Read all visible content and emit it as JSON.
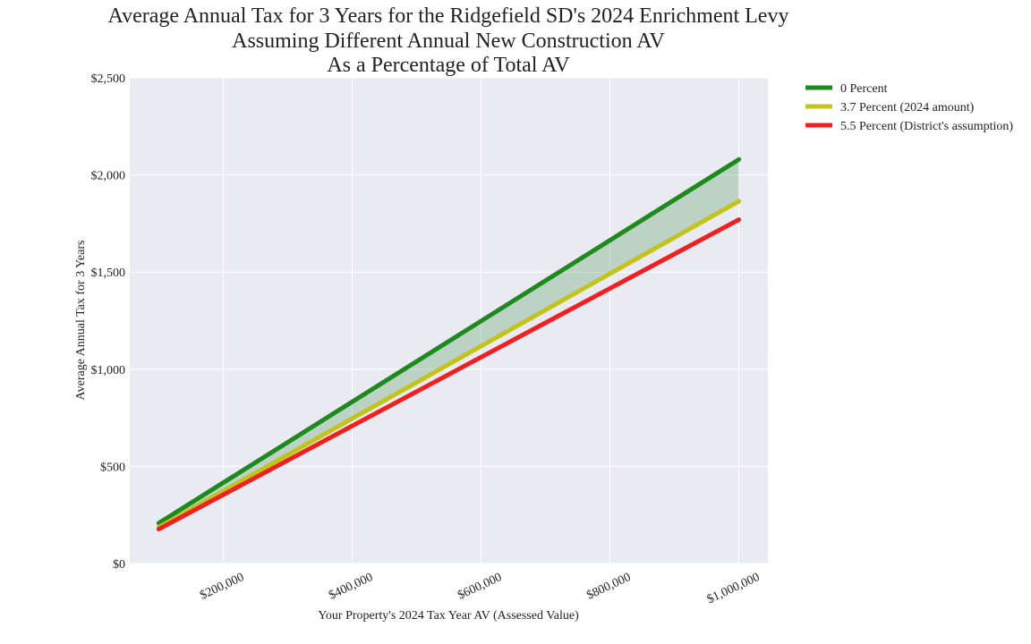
{
  "chart_data": {
    "type": "line",
    "title": [
      "Average Annual Tax for 3 Years for the Ridgefield SD's 2024 Enrichment Levy",
      "Assuming Different Annual New Construction AV",
      "As a Percentage of Total AV"
    ],
    "x_label": "Your Property's 2024 Tax Year AV (Assessed Value)",
    "y_label": "Average Annual Tax for 3 Years",
    "x": [
      100000,
      200000,
      300000,
      400000,
      500000,
      600000,
      700000,
      800000,
      900000,
      1000000
    ],
    "series": [
      {
        "name": "0 Percent",
        "color": "#1e8a1e",
        "values": [
          208,
          416,
          624,
          832,
          1040,
          1248,
          1456,
          1664,
          1872,
          2080
        ]
      },
      {
        "name": "3.7 Percent (2024 amount)",
        "color": "#c3c31c",
        "values": [
          186,
          373,
          559,
          746,
          932,
          1119,
          1305,
          1492,
          1678,
          1865
        ]
      },
      {
        "name": "5.5 Percent (District's assumption)",
        "color": "#f02020",
        "values": [
          177,
          354,
          531,
          708,
          885,
          1062,
          1239,
          1416,
          1593,
          1770
        ]
      }
    ],
    "fill_between": {
      "series": [
        0,
        1
      ],
      "color": "#2e8b3e",
      "opacity": 0.25
    },
    "xlim": [
      55000,
      1045000
    ],
    "xticks": [
      {
        "value": 200000,
        "label": "$200,000"
      },
      {
        "value": 400000,
        "label": "$400,000"
      },
      {
        "value": 600000,
        "label": "$600,000"
      },
      {
        "value": 800000,
        "label": "$800,000"
      },
      {
        "value": 1000000,
        "label": "$1,000,000"
      }
    ],
    "ylim": [
      0,
      2500
    ],
    "yticks": [
      {
        "value": 0,
        "label": "$0"
      },
      {
        "value": 500,
        "label": "$500"
      },
      {
        "value": 1000,
        "label": "$1,000"
      },
      {
        "value": 1500,
        "label": "$1,500"
      },
      {
        "value": 2000,
        "label": "$2,000"
      },
      {
        "value": 2500,
        "label": "$2,500"
      }
    ],
    "grid": true,
    "legend": "outside-upper-right"
  }
}
